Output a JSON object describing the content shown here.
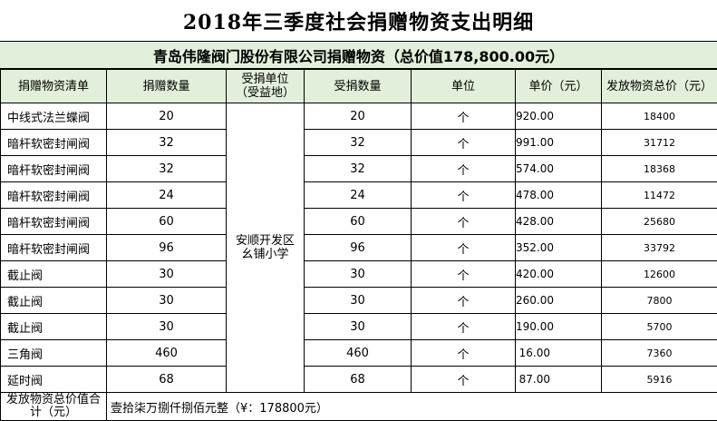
{
  "title": "2018年三季度社会捐赠物资支出明细",
  "subtitle": "青岛伟隆阀门股份有限公司捐赠物资（总价值178,800.00元）",
  "headers": {
    "item": "捐赠物资清单",
    "donated_qty": "捐赠数量",
    "recipient_line1": "受捐单位",
    "recipient_line2": "（受益地）",
    "received_qty": "受捐数量",
    "unit": "单位",
    "unit_price": "单价（元）",
    "total": "发放物资总价（元）"
  },
  "recipient": "安顺开发区幺铺小学",
  "rows": [
    {
      "item": "中线式法兰蝶阀",
      "donated": "20",
      "received": "20",
      "unit": "个",
      "price": "920.00",
      "total": "18400"
    },
    {
      "item": "暗杆软密封闸阀",
      "donated": "32",
      "received": "32",
      "unit": "个",
      "price": "991.00",
      "total": "31712"
    },
    {
      "item": "暗杆软密封闸阀",
      "donated": "32",
      "received": "32",
      "unit": "个",
      "price": "574.00",
      "total": "18368"
    },
    {
      "item": "暗杆软密封闸阀",
      "donated": "24",
      "received": "24",
      "unit": "个",
      "price": "478.00",
      "total": "11472"
    },
    {
      "item": "暗杆软密封闸阀",
      "donated": "60",
      "received": "60",
      "unit": "个",
      "price": "428.00",
      "total": "25680"
    },
    {
      "item": "暗杆软密封闸阀",
      "donated": "96",
      "received": "96",
      "unit": "个",
      "price": "352.00",
      "total": "33792"
    },
    {
      "item": "截止阀",
      "donated": "30",
      "received": "30",
      "unit": "个",
      "price": "420.00",
      "total": "12600"
    },
    {
      "item": "截止阀",
      "donated": "30",
      "received": "30",
      "unit": "个",
      "price": "260.00",
      "total": "7800"
    },
    {
      "item": "截止阀",
      "donated": "30",
      "received": "30",
      "unit": "个",
      "price": "190.00",
      "total": "5700"
    },
    {
      "item": "三角阀",
      "donated": "460",
      "received": "460",
      "unit": "个",
      "price": "16.00",
      "total": "7360"
    },
    {
      "item": "延时阀",
      "donated": "68",
      "received": "68",
      "unit": "个",
      "price": "87.00",
      "total": "5916"
    }
  ],
  "footer": {
    "label": "发放物资总价值合计（元）",
    "value": "壹拾柒万捌仟捌佰元整（¥：178800元）"
  },
  "colors": {
    "header_fill": "#e2efda",
    "grid_line": "#000000"
  }
}
